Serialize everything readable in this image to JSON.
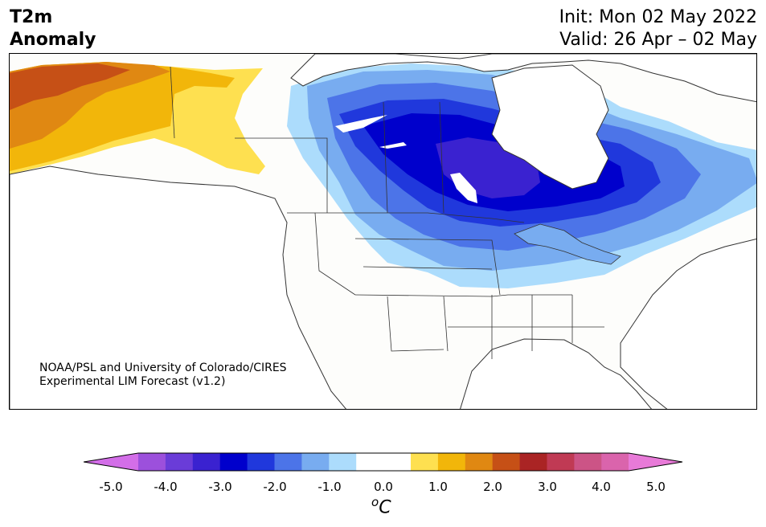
{
  "header": {
    "title_line1": "T2m",
    "title_line2": "Anomaly",
    "init": "Init: Mon 02 May 2022",
    "valid": "Valid: 26 Apr – 02 May"
  },
  "credit": {
    "line1": "NOAA/PSL and University of Colorado/CIRES",
    "line2": "Experimental LIM Forecast (v1.2)"
  },
  "colorbar": {
    "tick_labels": [
      "-5.0",
      "-4.0",
      "-3.0",
      "-2.0",
      "-1.0",
      "0.0",
      "1.0",
      "2.0",
      "3.0",
      "4.0",
      "5.0"
    ],
    "unit_sup": "o",
    "unit": "C",
    "colors": [
      "#d36ee8",
      "#9c50dc",
      "#6a3cd8",
      "#3a22d0",
      "#0000cc",
      "#2038dc",
      "#4c74e8",
      "#78acf0",
      "#acdcfc",
      "#ffffff",
      "#ffffff",
      "#fee050",
      "#f2b60a",
      "#e08812",
      "#c65016",
      "#aa2424",
      "#c03a54",
      "#cc5486",
      "#da64ac",
      "#e87ad8"
    ]
  },
  "map": {
    "region": "North America",
    "colors": {
      "land": "#fdfdfb",
      "water_lake": "#ffffff",
      "coast": "#333333"
    }
  }
}
